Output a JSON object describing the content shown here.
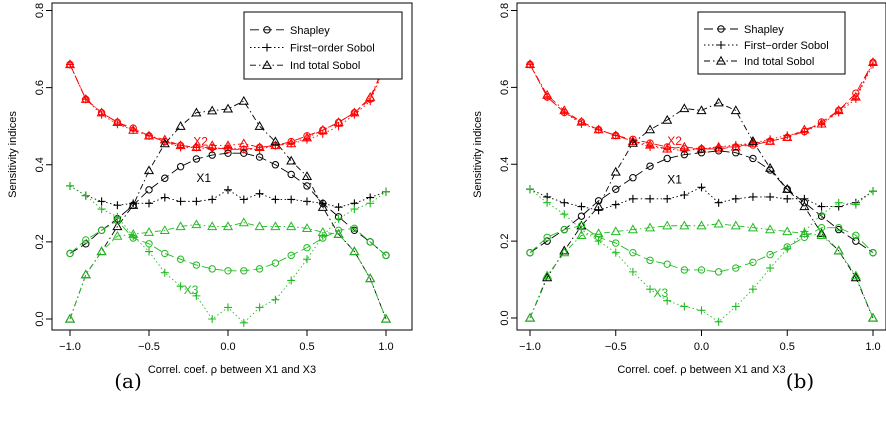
{
  "colors": {
    "black": "#000000",
    "red": "#ff0000",
    "green": "#22bb22"
  },
  "legend": [
    {
      "label": "Shapley",
      "marker": "circle",
      "dash": "long-dash"
    },
    {
      "label": "First−order Sobol",
      "marker": "plus",
      "dash": "dotted"
    },
    {
      "label": "Ind total Sobol",
      "marker": "triangle",
      "dash": "dot-dash"
    }
  ],
  "panel_labels": [
    "(a)",
    "(b)"
  ],
  "chart_data": [
    {
      "type": "line",
      "xlabel": "Correl. coef. ρ between X1 and X3",
      "ylabel": "Sensitivity indices",
      "xlim": [
        -1.0,
        1.0
      ],
      "ylim": [
        0.0,
        0.8
      ],
      "xticks": [
        -1.0,
        -0.5,
        0.0,
        0.5,
        1.0
      ],
      "xtick_labels": [
        "−1.0",
        "−0.5",
        "0.0",
        "0.5",
        "1.0"
      ],
      "yticks": [
        0.0,
        0.2,
        0.4,
        0.6,
        0.8
      ],
      "ytick_labels": [
        "0.0",
        "0.2",
        "0.4",
        "0.6",
        "0.8"
      ],
      "x": [
        -1.0,
        -0.9,
        -0.8,
        -0.7,
        -0.6,
        -0.5,
        -0.4,
        -0.3,
        -0.2,
        -0.1,
        0.0,
        0.1,
        0.2,
        0.3,
        0.4,
        0.5,
        0.6,
        0.7,
        0.8,
        0.9,
        1.0
      ],
      "annotations": [
        {
          "text": "X2",
          "color": "red",
          "x": -0.22,
          "y": 0.45
        },
        {
          "text": "X1",
          "color": "black",
          "x": -0.2,
          "y": 0.355
        },
        {
          "text": "X3",
          "color": "green",
          "x": -0.28,
          "y": 0.065
        }
      ],
      "series": [
        {
          "name": "Shapley",
          "variable": "X2",
          "color": "red",
          "marker": "circle",
          "values": [
            0.66,
            0.57,
            0.535,
            0.51,
            0.495,
            0.475,
            0.46,
            0.45,
            0.445,
            0.445,
            0.44,
            0.44,
            0.445,
            0.45,
            0.46,
            0.475,
            0.49,
            0.51,
            0.535,
            0.57,
            0.665
          ]
        },
        {
          "name": "First−order Sobol",
          "variable": "X2",
          "color": "red",
          "marker": "plus",
          "values": [
            0.66,
            0.57,
            0.53,
            0.505,
            0.49,
            0.475,
            0.46,
            0.445,
            0.445,
            0.44,
            0.445,
            0.44,
            0.44,
            0.45,
            0.455,
            0.465,
            0.48,
            0.5,
            0.53,
            0.565,
            0.66
          ]
        },
        {
          "name": "Ind total Sobol",
          "variable": "X2",
          "color": "red",
          "marker": "triangle",
          "values": [
            0.66,
            0.57,
            0.535,
            0.51,
            0.49,
            0.475,
            0.465,
            0.45,
            0.445,
            0.45,
            0.45,
            0.455,
            0.445,
            0.45,
            0.455,
            0.47,
            0.49,
            0.51,
            0.535,
            0.575,
            0.665
          ]
        },
        {
          "name": "Shapley",
          "variable": "X1",
          "color": "black",
          "marker": "circle",
          "values": [
            0.17,
            0.195,
            0.23,
            0.26,
            0.295,
            0.335,
            0.365,
            0.395,
            0.415,
            0.425,
            0.43,
            0.43,
            0.42,
            0.4,
            0.375,
            0.345,
            0.3,
            0.265,
            0.23,
            0.2,
            0.165
          ]
        },
        {
          "name": "First−order Sobol",
          "variable": "X1",
          "color": "black",
          "marker": "plus",
          "values": [
            0.345,
            0.32,
            0.305,
            0.295,
            0.3,
            0.3,
            0.315,
            0.305,
            0.305,
            0.31,
            0.335,
            0.31,
            0.325,
            0.31,
            0.31,
            0.305,
            0.3,
            0.29,
            0.3,
            0.315,
            0.33
          ]
        },
        {
          "name": "Ind total Sobol",
          "variable": "X1",
          "color": "black",
          "marker": "triangle",
          "values": [
            0.0,
            0.115,
            0.175,
            0.24,
            0.295,
            0.385,
            0.455,
            0.5,
            0.535,
            0.54,
            0.545,
            0.565,
            0.5,
            0.46,
            0.41,
            0.37,
            0.29,
            0.22,
            0.175,
            0.105,
            0.0
          ]
        },
        {
          "name": "Shapley",
          "variable": "X3",
          "color": "green",
          "marker": "circle",
          "values": [
            0.17,
            0.205,
            0.23,
            0.255,
            0.21,
            0.195,
            0.17,
            0.155,
            0.14,
            0.13,
            0.125,
            0.125,
            0.13,
            0.145,
            0.165,
            0.185,
            0.21,
            0.23,
            0.235,
            0.2,
            0.165
          ]
        },
        {
          "name": "First−order Sobol",
          "variable": "X3",
          "color": "green",
          "marker": "plus",
          "values": [
            0.345,
            0.32,
            0.285,
            0.265,
            0.215,
            0.175,
            0.12,
            0.085,
            0.06,
            0.0,
            0.03,
            -0.01,
            0.03,
            0.05,
            0.1,
            0.155,
            0.215,
            0.26,
            0.285,
            0.3,
            0.33
          ]
        },
        {
          "name": "Ind total Sobol",
          "variable": "X3",
          "color": "green",
          "marker": "triangle",
          "values": [
            0.0,
            0.115,
            0.175,
            0.215,
            0.22,
            0.225,
            0.23,
            0.24,
            0.245,
            0.24,
            0.24,
            0.25,
            0.24,
            0.24,
            0.24,
            0.235,
            0.225,
            0.22,
            0.175,
            0.105,
            0.0
          ]
        }
      ]
    },
    {
      "type": "line",
      "xlabel": "Correl. coef. ρ between X1 and X3",
      "ylabel": "Sensitivity indices",
      "xlim": [
        -1.0,
        1.0
      ],
      "ylim": [
        0.0,
        0.8
      ],
      "xticks": [
        -1.0,
        -0.5,
        0.0,
        0.5,
        1.0
      ],
      "xtick_labels": [
        "−1.0",
        "−0.5",
        "0.0",
        "0.5",
        "1.0"
      ],
      "yticks": [
        0.0,
        0.2,
        0.4,
        0.6,
        0.8
      ],
      "ytick_labels": [
        "0.0",
        "0.2",
        "0.4",
        "0.6",
        "0.8"
      ],
      "x": [
        -1.0,
        -0.9,
        -0.8,
        -0.7,
        -0.6,
        -0.5,
        -0.4,
        -0.3,
        -0.2,
        -0.1,
        0.0,
        0.1,
        0.2,
        0.3,
        0.4,
        0.5,
        0.6,
        0.7,
        0.8,
        0.9,
        1.0
      ],
      "annotations": [
        {
          "text": "X2",
          "color": "red",
          "x": -0.2,
          "y": 0.45
        },
        {
          "text": "X1",
          "color": "black",
          "x": -0.2,
          "y": 0.35
        },
        {
          "text": "X3",
          "color": "green",
          "x": -0.28,
          "y": 0.055
        }
      ],
      "series": [
        {
          "name": "Shapley",
          "variable": "X2",
          "color": "red",
          "marker": "circle",
          "values": [
            0.66,
            0.575,
            0.535,
            0.51,
            0.49,
            0.475,
            0.465,
            0.455,
            0.445,
            0.44,
            0.44,
            0.44,
            0.445,
            0.45,
            0.46,
            0.47,
            0.485,
            0.51,
            0.54,
            0.585,
            0.665
          ]
        },
        {
          "name": "First−order Sobol",
          "variable": "X2",
          "color": "red",
          "marker": "plus",
          "values": [
            0.66,
            0.575,
            0.535,
            0.505,
            0.49,
            0.475,
            0.46,
            0.445,
            0.44,
            0.435,
            0.44,
            0.445,
            0.45,
            0.455,
            0.465,
            0.475,
            0.485,
            0.505,
            0.535,
            0.57,
            0.66
          ]
        },
        {
          "name": "Ind total Sobol",
          "variable": "X2",
          "color": "red",
          "marker": "triangle",
          "values": [
            0.66,
            0.58,
            0.54,
            0.51,
            0.49,
            0.475,
            0.46,
            0.45,
            0.44,
            0.445,
            0.44,
            0.445,
            0.445,
            0.455,
            0.46,
            0.47,
            0.49,
            0.505,
            0.54,
            0.575,
            0.665
          ]
        },
        {
          "name": "Shapley",
          "variable": "X1",
          "color": "black",
          "marker": "circle",
          "values": [
            0.17,
            0.2,
            0.23,
            0.265,
            0.305,
            0.335,
            0.365,
            0.395,
            0.415,
            0.425,
            0.43,
            0.435,
            0.43,
            0.415,
            0.385,
            0.335,
            0.3,
            0.265,
            0.23,
            0.2,
            0.17
          ]
        },
        {
          "name": "First−order Sobol",
          "variable": "X1",
          "color": "black",
          "marker": "plus",
          "values": [
            0.335,
            0.315,
            0.3,
            0.29,
            0.28,
            0.295,
            0.31,
            0.31,
            0.31,
            0.32,
            0.34,
            0.3,
            0.31,
            0.315,
            0.315,
            0.31,
            0.31,
            0.29,
            0.29,
            0.3,
            0.33
          ]
        },
        {
          "name": "Ind total Sobol",
          "variable": "X1",
          "color": "black",
          "marker": "triangle",
          "values": [
            0.0,
            0.105,
            0.175,
            0.24,
            0.29,
            0.38,
            0.455,
            0.49,
            0.515,
            0.545,
            0.54,
            0.56,
            0.54,
            0.46,
            0.39,
            0.335,
            0.29,
            0.22,
            0.175,
            0.105,
            0.0
          ]
        },
        {
          "name": "Shapley",
          "variable": "X3",
          "color": "green",
          "marker": "circle",
          "values": [
            0.17,
            0.21,
            0.23,
            0.24,
            0.21,
            0.195,
            0.17,
            0.15,
            0.14,
            0.125,
            0.125,
            0.12,
            0.13,
            0.145,
            0.165,
            0.185,
            0.21,
            0.235,
            0.235,
            0.215,
            0.17
          ]
        },
        {
          "name": "First−order Sobol",
          "variable": "X3",
          "color": "green",
          "marker": "plus",
          "values": [
            0.335,
            0.3,
            0.27,
            0.23,
            0.2,
            0.17,
            0.12,
            0.075,
            0.045,
            0.03,
            0.02,
            -0.01,
            0.03,
            0.075,
            0.13,
            0.18,
            0.225,
            0.27,
            0.3,
            0.295,
            0.33
          ]
        },
        {
          "name": "Ind total Sobol",
          "variable": "X3",
          "color": "green",
          "marker": "triangle",
          "values": [
            0.0,
            0.11,
            0.17,
            0.215,
            0.22,
            0.225,
            0.23,
            0.235,
            0.24,
            0.24,
            0.24,
            0.245,
            0.24,
            0.235,
            0.23,
            0.225,
            0.22,
            0.215,
            0.175,
            0.11,
            0.0
          ]
        }
      ]
    }
  ]
}
